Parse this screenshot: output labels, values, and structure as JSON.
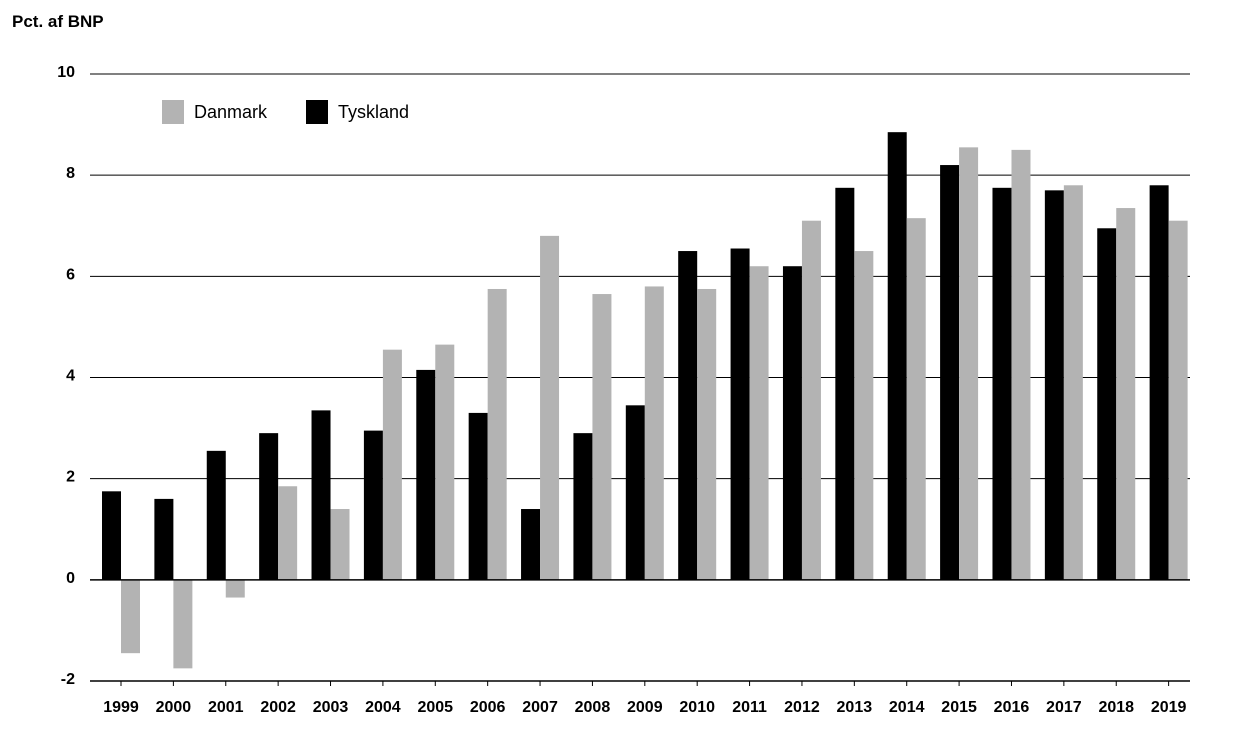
{
  "chart_data": {
    "type": "bar",
    "ylabel": "Pct. af BNP",
    "ylim": [
      -2,
      10
    ],
    "yticks": [
      -2,
      0,
      2,
      4,
      6,
      8,
      10
    ],
    "grid": true,
    "legend_position": "top-left",
    "categories": [
      "1999",
      "2000",
      "2001",
      "2002",
      "2003",
      "2004",
      "2005",
      "2006",
      "2007",
      "2008",
      "2009",
      "2010",
      "2011",
      "2012",
      "2013",
      "2014",
      "2015",
      "2016",
      "2017",
      "2018",
      "2019"
    ],
    "series": [
      {
        "name": "Tyskland",
        "color": "#000000",
        "values": [
          1.75,
          1.6,
          2.55,
          2.9,
          3.35,
          2.95,
          4.15,
          3.3,
          1.4,
          2.9,
          3.45,
          6.5,
          6.55,
          6.2,
          7.75,
          8.85,
          8.2,
          7.75,
          7.7,
          6.95,
          7.8
        ]
      },
      {
        "name": "Danmark",
        "color": "#b3b3b3",
        "values": [
          -1.45,
          -1.75,
          -0.35,
          1.85,
          1.4,
          4.55,
          4.65,
          5.75,
          6.8,
          5.65,
          5.8,
          5.75,
          6.2,
          7.1,
          6.5,
          7.15,
          8.55,
          8.5,
          7.8,
          7.35,
          7.1
        ]
      }
    ],
    "legend_order": [
      "Danmark",
      "Tyskland"
    ]
  }
}
